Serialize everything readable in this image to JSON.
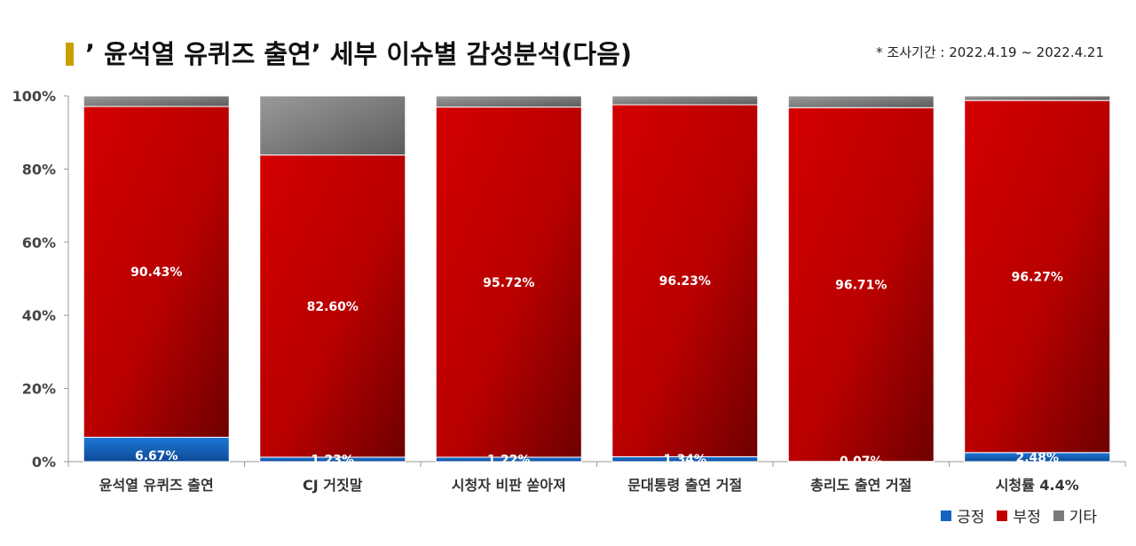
{
  "header": {
    "title": "’ 윤석열 유퀴즈 출연’ 세부 이슈별 감성분석(다음)",
    "period": "* 조사기간 : 2022.4.19 ~ 2022.4.21"
  },
  "colors": {
    "positive": "#1565c0",
    "negative": "#c00000",
    "other": "#7a7a7a"
  },
  "chart_data": {
    "type": "bar",
    "stacked": true,
    "categories": [
      "윤석열 유퀴즈 출연",
      "CJ 거짓말",
      "시청자 비판 쏟아져",
      "문대통령 출연 거절",
      "총리도 출연 거절",
      "시청률 4.4%"
    ],
    "series": [
      {
        "name": "긍정",
        "values": [
          6.67,
          1.23,
          1.22,
          1.34,
          0.07,
          2.48
        ],
        "labels": [
          "6.67%",
          "1.23%",
          "1.22%",
          "1.34%",
          "0.07%",
          "2.48%"
        ]
      },
      {
        "name": "부정",
        "values": [
          90.43,
          82.6,
          95.72,
          96.23,
          96.71,
          96.27
        ],
        "labels": [
          "90.43%",
          "82.60%",
          "95.72%",
          "96.23%",
          "96.71%",
          "96.27%"
        ]
      },
      {
        "name": "기타",
        "values": [
          2.9,
          16.17,
          3.06,
          2.43,
          3.22,
          1.25
        ]
      }
    ],
    "yticks": [
      "0%",
      "20%",
      "40%",
      "60%",
      "80%",
      "100%"
    ],
    "ylim": [
      0,
      100
    ],
    "grid": false,
    "legend": "bottom-right"
  }
}
